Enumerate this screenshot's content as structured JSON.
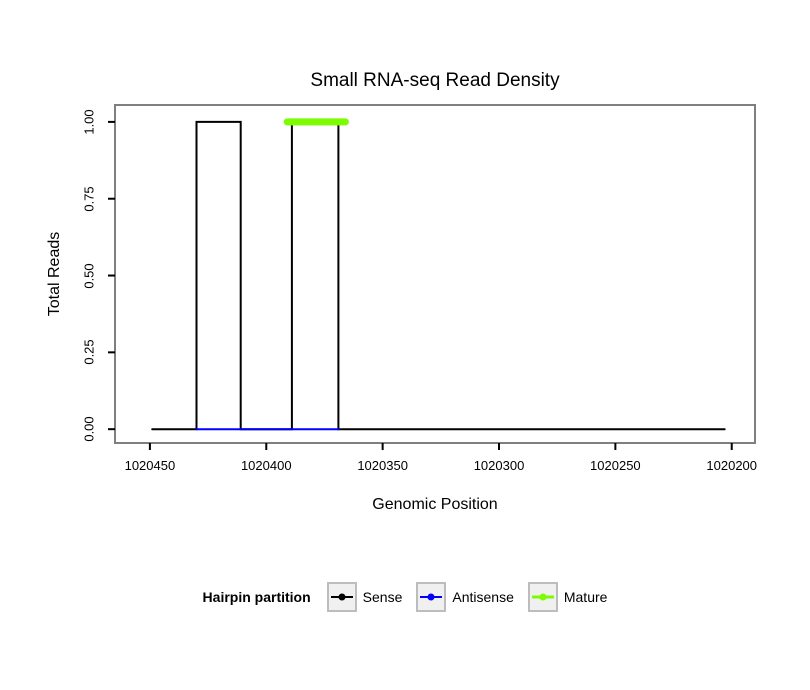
{
  "figure": {
    "title": "Small RNA-seq Read Density"
  },
  "chart_data": {
    "type": "line",
    "title": "Small RNA-seq Read Density",
    "xlabel": "Genomic Position",
    "ylabel": "Total Reads",
    "x_axis_reversed": true,
    "grid": false,
    "x_domain": [
      1020465,
      1020190
    ],
    "y_domain": [
      -0.045,
      1.055
    ],
    "x_ticks": [
      1020450,
      1020400,
      1020350,
      1020300,
      1020250,
      1020200
    ],
    "y_tick_labels": [
      "0.00",
      "0.25",
      "0.50",
      "0.75",
      "1.00"
    ],
    "y_tick_values": [
      0,
      0.25,
      0.5,
      0.75,
      1.0
    ],
    "panel_border_color": "#7f7f7f",
    "legend": {
      "title": "Hairpin partition",
      "position": "bottom"
    },
    "series": [
      {
        "name": "Sense",
        "color": "#000000",
        "stroke_width": 2,
        "points": [
          [
            1020449,
            0
          ],
          [
            1020430,
            0
          ],
          [
            1020430,
            1
          ],
          [
            1020411,
            1
          ],
          [
            1020411,
            0
          ],
          [
            1020389,
            0
          ],
          [
            1020389,
            1
          ],
          [
            1020369,
            1
          ],
          [
            1020369,
            0
          ],
          [
            1020203,
            0
          ]
        ]
      },
      {
        "name": "Antisense",
        "color": "#0000ff",
        "stroke_width": 2,
        "points": [
          [
            1020430,
            0
          ],
          [
            1020369,
            0
          ]
        ]
      },
      {
        "name": "Mature",
        "color": "#7cfc00",
        "stroke_width": 7,
        "points": [
          [
            1020391,
            1
          ],
          [
            1020366,
            1
          ]
        ]
      }
    ]
  }
}
